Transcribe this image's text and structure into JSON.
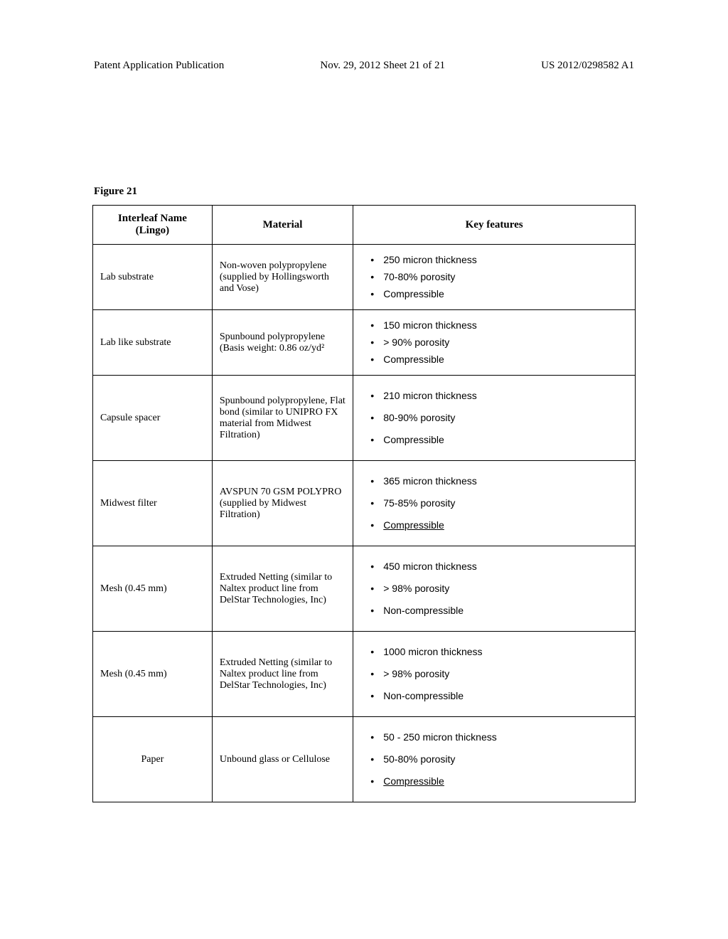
{
  "header": {
    "left": "Patent Application Publication",
    "center": "Nov. 29, 2012  Sheet 21 of 21",
    "right": "US 2012/0298582 A1"
  },
  "figure_label": "Figure 21",
  "table": {
    "columns": [
      "Interleaf Name (Lingo)",
      "Material",
      "Key features"
    ],
    "col_widths": [
      "22%",
      "26%",
      "52%"
    ],
    "rows": [
      {
        "name": "Lab substrate",
        "name_centered": false,
        "material": "Non-woven polypropylene (supplied by Hollingsworth and Vose)",
        "features": [
          "250 micron thickness",
          "70-80% porosity",
          "Compressible"
        ],
        "features_spaced": false
      },
      {
        "name": "Lab like substrate",
        "name_centered": false,
        "material": "Spunbound polypropylene (Basis weight: 0.86 oz/yd²",
        "features": [
          "150 micron thickness",
          "> 90% porosity",
          "Compressible"
        ],
        "features_spaced": false
      },
      {
        "name": "Capsule spacer",
        "name_centered": false,
        "material": "Spunbound polypropylene, Flat bond (similar to UNIPRO FX material from Midwest Filtration)",
        "features": [
          "210 micron thickness",
          "80-90% porosity",
          "Compressible"
        ],
        "features_spaced": true
      },
      {
        "name": "Midwest filter",
        "name_centered": false,
        "material": "AVSPUN 70 GSM POLYPRO (supplied by Midwest Filtration)",
        "features": [
          "365 micron thickness",
          "75-85% porosity",
          "Compressible"
        ],
        "features_spaced": true,
        "last_underlined": true
      },
      {
        "name": "Mesh (0.45 mm)",
        "name_centered": false,
        "material": "Extruded Netting (similar to Naltex product line from DelStar Technologies, Inc)",
        "features": [
          "450 micron thickness",
          "> 98% porosity",
          "Non-compressible"
        ],
        "features_spaced": true
      },
      {
        "name": "Mesh (0.45 mm)",
        "name_centered": false,
        "material": "Extruded Netting (similar to Naltex product line from DelStar Technologies, Inc)",
        "features": [
          "1000 micron thickness",
          "> 98% porosity",
          "Non-compressible"
        ],
        "features_spaced": true
      },
      {
        "name": "Paper",
        "name_centered": true,
        "material": "Unbound glass or Cellulose",
        "features": [
          "50 - 250 micron thickness",
          "50-80% porosity",
          "Compressible"
        ],
        "features_spaced": true,
        "last_underlined": true
      }
    ]
  }
}
